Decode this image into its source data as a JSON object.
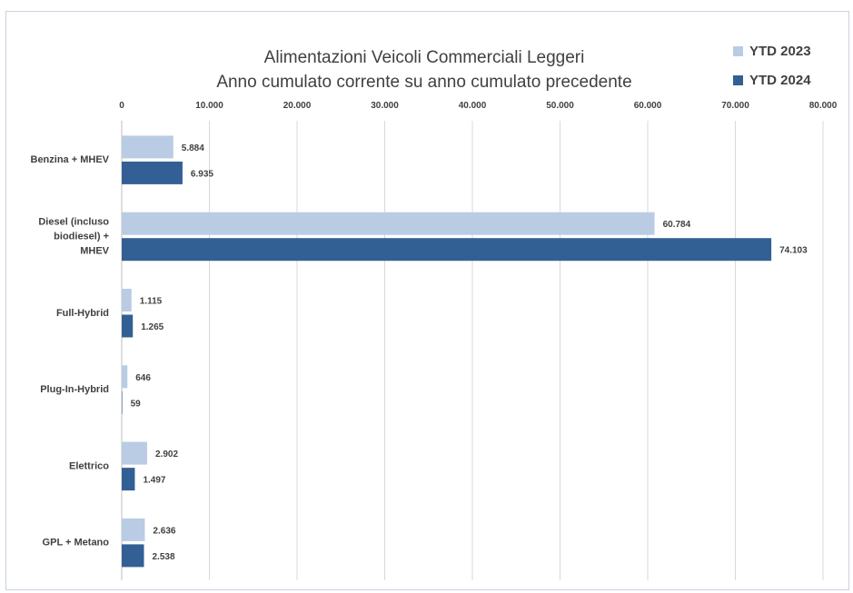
{
  "chart_data": {
    "type": "bar",
    "orientation": "horizontal",
    "title": [
      "Alimentazioni Veicoli Commerciali Leggeri",
      "Anno cumulato corrente su anno cumulato precedente"
    ],
    "categories": [
      [
        "Benzina + MHEV"
      ],
      [
        "Diesel (incluso",
        "biodiesel) +",
        "MHEV"
      ],
      [
        "Full-Hybrid"
      ],
      [
        "Plug-In-Hybrid"
      ],
      [
        "Elettrico"
      ],
      [
        "GPL + Metano"
      ]
    ],
    "series": [
      {
        "name": "YTD 2023",
        "color": "#b9cce4",
        "values": [
          5884,
          60784,
          1115,
          646,
          2902,
          2636
        ],
        "labels": [
          "5.884",
          "60.784",
          "1.115",
          "646",
          "2.902",
          "2.636"
        ]
      },
      {
        "name": "YTD 2024",
        "color": "#336094",
        "values": [
          6935,
          74103,
          1265,
          59,
          1497,
          2538
        ],
        "labels": [
          "6.935",
          "74.103",
          "1.265",
          "59",
          "1.497",
          "2.538"
        ]
      }
    ],
    "xlim": [
      0,
      80000
    ],
    "ticks": [
      0,
      10000,
      20000,
      30000,
      40000,
      50000,
      60000,
      70000,
      80000
    ],
    "tick_labels": [
      "0",
      "10.000",
      "20.000",
      "30.000",
      "40.000",
      "50.000",
      "60.000",
      "70.000",
      "80.000"
    ],
    "axis_position": "top",
    "grid": true,
    "legend": "top-right"
  }
}
